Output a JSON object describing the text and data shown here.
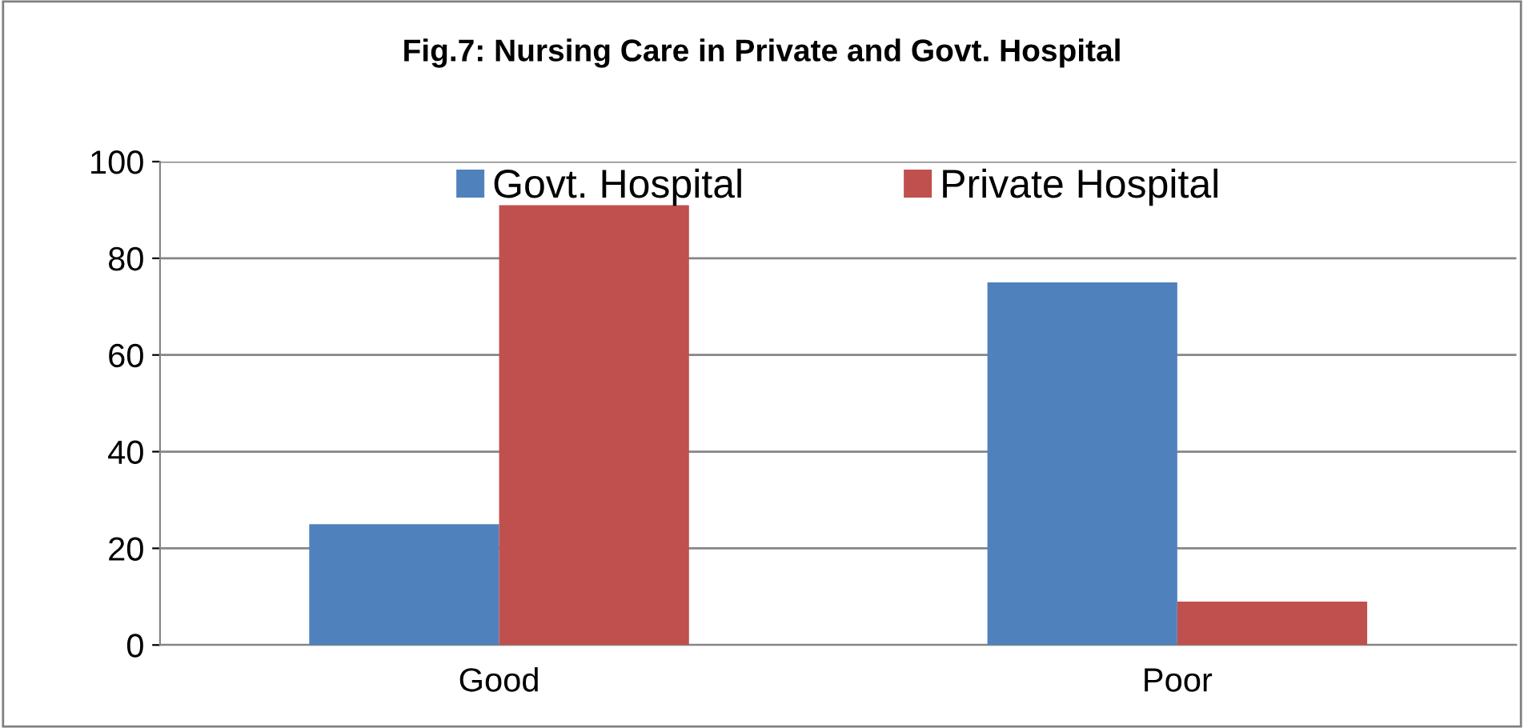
{
  "chart_data": {
    "type": "bar",
    "title": "Fig.7: Nursing Care in Private and Govt. Hospital",
    "categories": [
      "Good",
      "Poor"
    ],
    "series": [
      {
        "name": "Govt. Hospital",
        "color": "#4f81bd",
        "values": [
          25,
          75
        ]
      },
      {
        "name": "Private Hospital",
        "color": "#c0504d",
        "values": [
          91,
          9
        ]
      }
    ],
    "ylim": [
      0,
      100
    ],
    "yticks": [
      0,
      20,
      40,
      60,
      80,
      100
    ],
    "grid": "y",
    "legend": "top"
  }
}
